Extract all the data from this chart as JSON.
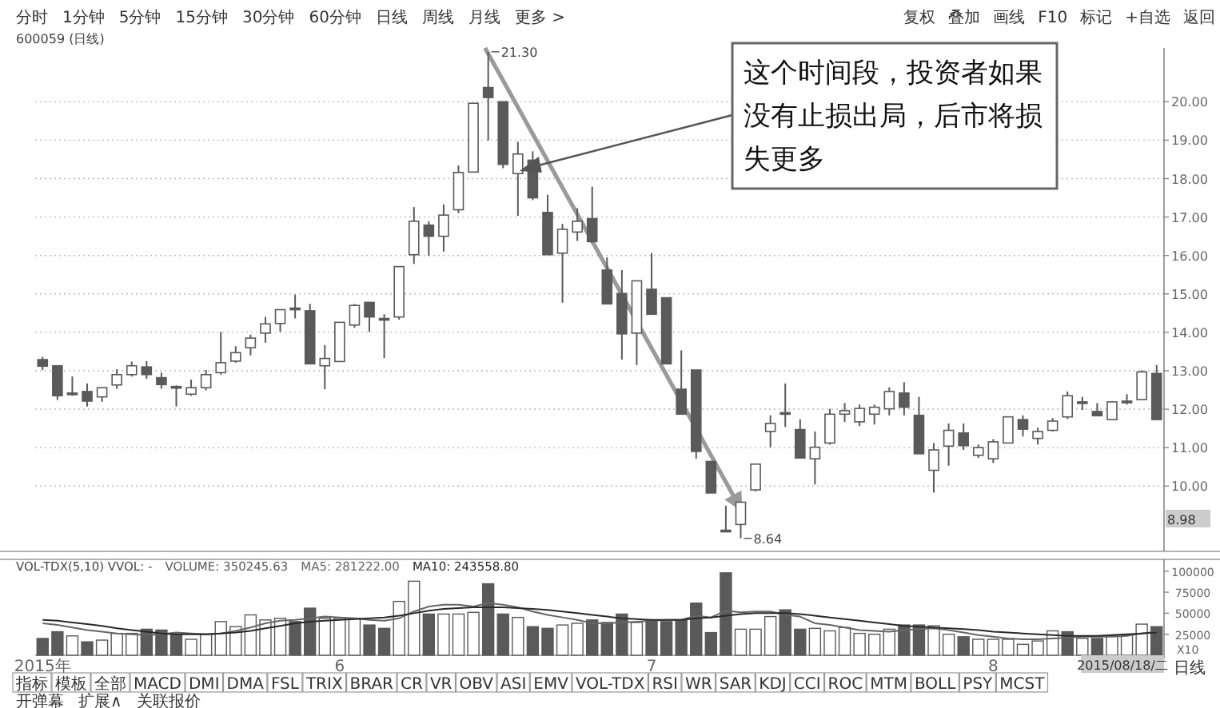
{
  "chart_data": [
    {
      "type": "other",
      "annotations": [
        "分时",
        "1分钟",
        "5分钟",
        "15分钟",
        "30分钟",
        "60分钟",
        "日线",
        "周线",
        "月线",
        "更多 >"
      ]
    },
    {
      "type": "other",
      "annotations": [
        "复权",
        "叠加",
        "画线",
        "F10",
        "标记",
        "+自选",
        "返回"
      ]
    },
    {
      "type": "candlestick",
      "title": "600059 (日线)",
      "color": "#5a5a5a",
      "tick_labels": "y",
      "grid": "y",
      "categories": [
        null,
        null,
        null,
        null,
        null,
        null,
        null,
        null,
        null,
        null,
        null,
        null,
        null,
        null,
        null,
        null,
        null,
        null,
        null,
        null,
        null,
        null,
        null,
        null,
        null,
        null,
        null,
        null,
        null,
        null,
        null,
        null,
        null,
        null,
        null,
        null,
        null,
        null,
        null,
        null,
        null,
        null,
        null,
        null,
        null,
        null,
        null,
        null,
        null,
        null,
        null,
        null,
        null,
        null,
        null,
        null,
        null,
        null,
        null,
        null,
        null,
        null,
        null,
        null,
        null,
        null,
        null,
        null,
        null,
        null,
        null,
        null,
        null,
        null,
        null,
        null
      ],
      "ylim": [
        8.3,
        21.4
      ],
      "yticks": [
        {
          "value": 10,
          "label": "10.00"
        },
        {
          "value": 11,
          "label": "11.00"
        },
        {
          "value": 12,
          "label": "12.00"
        },
        {
          "value": 13,
          "label": "13.00"
        },
        {
          "value": 14,
          "label": "14.00"
        },
        {
          "value": 15,
          "label": "15.00"
        },
        {
          "value": 16,
          "label": "16.00"
        },
        {
          "value": 17,
          "label": "17.00"
        },
        {
          "value": 18,
          "label": "18.00"
        },
        {
          "value": 19,
          "label": "19.00"
        },
        {
          "value": 20,
          "label": "20.00"
        }
      ],
      "ohlc": [
        [
          13.29,
          13.36,
          13.02,
          13.12
        ],
        [
          13.13,
          13.13,
          12.24,
          12.35
        ],
        [
          12.42,
          12.85,
          12.35,
          12.42
        ],
        [
          12.46,
          12.67,
          12.07,
          12.21
        ],
        [
          12.32,
          12.56,
          12.19,
          12.56
        ],
        [
          12.63,
          13.04,
          12.53,
          12.9
        ],
        [
          12.9,
          13.24,
          12.85,
          13.13
        ],
        [
          13.1,
          13.25,
          12.79,
          12.9
        ],
        [
          12.82,
          12.95,
          12.53,
          12.64
        ],
        [
          12.59,
          12.62,
          12.07,
          12.59
        ],
        [
          12.39,
          12.77,
          12.35,
          12.56
        ],
        [
          12.56,
          13.02,
          12.49,
          12.9
        ],
        [
          12.95,
          14.01,
          12.9,
          13.21
        ],
        [
          13.25,
          13.64,
          13.21,
          13.47
        ],
        [
          13.6,
          13.94,
          13.4,
          13.85
        ],
        [
          13.98,
          14.4,
          13.73,
          14.22
        ],
        [
          14.23,
          14.59,
          14.01,
          14.59
        ],
        [
          14.63,
          14.98,
          14.36,
          14.63
        ],
        [
          14.56,
          14.74,
          13.18,
          13.18
        ],
        [
          13.13,
          13.67,
          12.52,
          13.32
        ],
        [
          13.24,
          14.26,
          13.24,
          14.26
        ],
        [
          14.19,
          14.74,
          14.12,
          14.7
        ],
        [
          14.78,
          14.78,
          14.01,
          14.4
        ],
        [
          14.36,
          14.47,
          13.33,
          14.36
        ],
        [
          14.4,
          15.71,
          14.33,
          15.71
        ],
        [
          16.02,
          17.26,
          15.78,
          16.89
        ],
        [
          16.79,
          16.89,
          15.99,
          16.5
        ],
        [
          16.5,
          17.33,
          16.1,
          17.05
        ],
        [
          17.19,
          18.34,
          17.1,
          18.16
        ],
        [
          18.17,
          19.96,
          18.16,
          19.96
        ],
        [
          20.37,
          21.3,
          18.99,
          20.11
        ],
        [
          20.0,
          20.0,
          18.27,
          18.37
        ],
        [
          18.13,
          18.96,
          17.03,
          18.64
        ],
        [
          18.48,
          18.71,
          17.44,
          17.5
        ],
        [
          17.12,
          17.58,
          16.02,
          16.02
        ],
        [
          16.06,
          16.82,
          14.77,
          16.68
        ],
        [
          16.61,
          17.23,
          16.38,
          16.89
        ],
        [
          16.96,
          17.79,
          16.33,
          16.36
        ],
        [
          15.62,
          15.95,
          14.74,
          14.74
        ],
        [
          15.01,
          15.62,
          13.29,
          13.96
        ],
        [
          13.98,
          15.34,
          13.15,
          15.34
        ],
        [
          15.12,
          16.06,
          14.47,
          14.47
        ],
        [
          14.9,
          14.9,
          13.18,
          13.18
        ],
        [
          12.52,
          13.53,
          11.87,
          11.87
        ],
        [
          13.02,
          13.02,
          10.71,
          10.9
        ],
        [
          10.64,
          10.64,
          9.82,
          9.82
        ],
        [
          8.85,
          9.49,
          8.8,
          8.85
        ],
        [
          9.0,
          9.58,
          8.64,
          9.58
        ],
        [
          9.9,
          10.57,
          9.86,
          10.57
        ],
        [
          11.42,
          11.84,
          11.01,
          11.63
        ],
        [
          11.91,
          12.67,
          11.54,
          11.91
        ],
        [
          11.47,
          11.74,
          10.73,
          10.73
        ],
        [
          10.71,
          11.42,
          10.04,
          11.01
        ],
        [
          11.12,
          12.01,
          11.08,
          11.87
        ],
        [
          11.87,
          12.16,
          11.67,
          11.96
        ],
        [
          11.67,
          12.12,
          11.56,
          12.02
        ],
        [
          11.87,
          12.12,
          11.6,
          12.05
        ],
        [
          12.01,
          12.57,
          11.84,
          12.46
        ],
        [
          12.42,
          12.7,
          11.84,
          12.05
        ],
        [
          11.84,
          12.32,
          10.84,
          10.84
        ],
        [
          10.41,
          11.12,
          9.83,
          10.94
        ],
        [
          11.04,
          11.63,
          10.53,
          11.45
        ],
        [
          11.38,
          11.63,
          10.94,
          11.05
        ],
        [
          10.8,
          11.08,
          10.73,
          11.0
        ],
        [
          10.71,
          11.22,
          10.6,
          11.15
        ],
        [
          11.12,
          11.8,
          11.12,
          11.8
        ],
        [
          11.73,
          11.84,
          11.29,
          11.48
        ],
        [
          11.24,
          11.52,
          11.08,
          11.42
        ],
        [
          11.45,
          11.77,
          11.42,
          11.69
        ],
        [
          11.8,
          12.46,
          11.74,
          12.35
        ],
        [
          12.19,
          12.32,
          11.98,
          12.19
        ],
        [
          11.94,
          12.16,
          11.83,
          11.83
        ],
        [
          11.73,
          12.21,
          11.73,
          12.19
        ],
        [
          12.21,
          12.39,
          12.12,
          12.21
        ],
        [
          12.25,
          13.01,
          12.25,
          12.97
        ],
        [
          12.93,
          13.15,
          11.73,
          11.73
        ]
      ],
      "annotations": [
        "这个时间段，投资者如果没有止损出局，后市将损失更多",
        "21.30",
        "8.64",
        "8.98"
      ]
    },
    {
      "type": "bar",
      "title": "VOL-TDX(5,10) VVOL: -",
      "legend": "top left",
      "categories": [
        "2015年",
        null,
        null,
        null,
        null,
        null,
        null,
        null,
        null,
        null,
        null,
        null,
        null,
        null,
        null,
        null,
        null,
        null,
        null,
        null,
        "6",
        null,
        null,
        null,
        null,
        null,
        null,
        null,
        null,
        null,
        null,
        null,
        null,
        null,
        null,
        null,
        null,
        null,
        null,
        null,
        null,
        "7",
        null,
        null,
        null,
        null,
        null,
        null,
        null,
        null,
        null,
        null,
        null,
        null,
        null,
        null,
        null,
        null,
        null,
        null,
        null,
        null,
        null,
        null,
        "8",
        null,
        null,
        null,
        null,
        null,
        null,
        null,
        null,
        null,
        null,
        null
      ],
      "ylim": [
        0,
        114000
      ],
      "yticks": [
        25000,
        50000,
        75000,
        100000
      ],
      "series": [
        {
          "name": "VOLUME: 350245.63",
          "color": "#5a5a5a",
          "colors": [
            "#5a5a5a",
            "#5a5a5a",
            "#ffffff",
            "#5a5a5a",
            "#ffffff",
            "#ffffff",
            "#ffffff",
            "#5a5a5a",
            "#5a5a5a",
            "#5a5a5a",
            "#ffffff",
            "#ffffff",
            "#ffffff",
            "#ffffff",
            "#ffffff",
            "#ffffff",
            "#ffffff",
            "#5a5a5a",
            "#5a5a5a",
            "#ffffff",
            "#ffffff",
            "#ffffff",
            "#5a5a5a",
            "#5a5a5a",
            "#ffffff",
            "#ffffff",
            "#5a5a5a",
            "#ffffff",
            "#ffffff",
            "#ffffff",
            "#5a5a5a",
            "#5a5a5a",
            "#ffffff",
            "#5a5a5a",
            "#5a5a5a",
            "#ffffff",
            "#ffffff",
            "#5a5a5a",
            "#5a5a5a",
            "#5a5a5a",
            "#ffffff",
            "#5a5a5a",
            "#5a5a5a",
            "#5a5a5a",
            "#5a5a5a",
            "#5a5a5a",
            "#5a5a5a",
            "#ffffff",
            "#ffffff",
            "#ffffff",
            "#5a5a5a",
            "#5a5a5a",
            "#ffffff",
            "#ffffff",
            "#ffffff",
            "#ffffff",
            "#ffffff",
            "#ffffff",
            "#5a5a5a",
            "#5a5a5a",
            "#ffffff",
            "#ffffff",
            "#5a5a5a",
            "#ffffff",
            "#ffffff",
            "#ffffff",
            "#ffffff",
            "#ffffff",
            "#ffffff",
            "#5a5a5a",
            "#ffffff",
            "#5a5a5a",
            "#ffffff",
            "#ffffff",
            "#ffffff",
            "#5a5a5a"
          ],
          "values": [
            20000,
            28000,
            23000,
            16000,
            18000,
            26000,
            26000,
            31000,
            30000,
            25000,
            19000,
            25000,
            40000,
            34000,
            48000,
            42000,
            44000,
            40000,
            56000,
            44000,
            44000,
            44000,
            36000,
            32000,
            64000,
            88000,
            49000,
            49000,
            49000,
            51000,
            85000,
            49000,
            45000,
            34000,
            32000,
            36000,
            38000,
            42000,
            39000,
            49000,
            39000,
            42000,
            40000,
            42000,
            62000,
            27000,
            98000,
            31000,
            31000,
            46000,
            54000,
            31000,
            32000,
            29000,
            33000,
            26000,
            25000,
            31000,
            36000,
            36000,
            35000,
            25000,
            22000,
            19000,
            19000,
            19000,
            13000,
            17000,
            29000,
            28000,
            20000,
            20000,
            23000,
            24000,
            37000,
            34000
          ]
        },
        {
          "name": "MA5: 281222.00",
          "type": "line",
          "color": "#666666",
          "values": [
            38000,
            36000,
            33000,
            30000,
            28000,
            26000,
            25000,
            24000,
            25000,
            27000,
            26000,
            25000,
            26000,
            29000,
            33000,
            38000,
            41000,
            42000,
            44000,
            46000,
            45000,
            44000,
            42000,
            41000,
            44000,
            52000,
            58000,
            60000,
            60000,
            58000,
            62000,
            60000,
            57000,
            52000,
            48000,
            45000,
            42000,
            38000,
            38000,
            39000,
            40000,
            41000,
            42000,
            42000,
            47000,
            45000,
            53000,
            51000,
            52000,
            52000,
            48000,
            46000,
            38000,
            36000,
            33000,
            30000,
            29000,
            28000,
            30000,
            31000,
            32000,
            30000,
            27000,
            24000,
            22000,
            20000,
            19000,
            19000,
            20000,
            21000,
            22000,
            22000,
            22000,
            23000,
            26000,
            28000
          ]
        },
        {
          "name": "MA10: 243558.80",
          "type": "line",
          "color": "#2a2a2a",
          "values": [
            42000,
            41000,
            39000,
            37000,
            35000,
            32000,
            30000,
            28000,
            26000,
            25000,
            25000,
            25000,
            26000,
            27000,
            29000,
            32000,
            35000,
            38000,
            40000,
            41000,
            42000,
            43000,
            44000,
            45000,
            47000,
            50000,
            53000,
            55000,
            56000,
            57000,
            57000,
            57000,
            56000,
            55000,
            54000,
            52000,
            50000,
            48000,
            46000,
            44000,
            43000,
            42000,
            42000,
            42000,
            44000,
            45000,
            47000,
            49000,
            50000,
            50000,
            50000,
            49000,
            47000,
            45000,
            43000,
            41000,
            39000,
            37000,
            35000,
            34000,
            33000,
            32000,
            31000,
            30000,
            28000,
            27000,
            26000,
            25000,
            24000,
            23000,
            23000,
            23000,
            24000,
            25000,
            26000,
            27000
          ]
        }
      ],
      "annotations": [
        "2015/08/18/二",
        "日线",
        "X10"
      ]
    },
    {
      "type": "other",
      "annotations": [
        "指标",
        "模板",
        "全部",
        "MACD",
        "DMI",
        "DMA",
        "FSL",
        "TRIX",
        "BRAR",
        "CR",
        "VR",
        "OBV",
        "ASI",
        "EMV",
        "VOL-TDX",
        "RSI",
        "WR",
        "SAR",
        "KDJ",
        "CCI",
        "ROC",
        "MTM",
        "BOLL",
        "PSY",
        "MCST"
      ]
    },
    {
      "type": "other",
      "annotations": [
        "开弹幕",
        "扩展∧",
        "关联报价"
      ]
    }
  ]
}
